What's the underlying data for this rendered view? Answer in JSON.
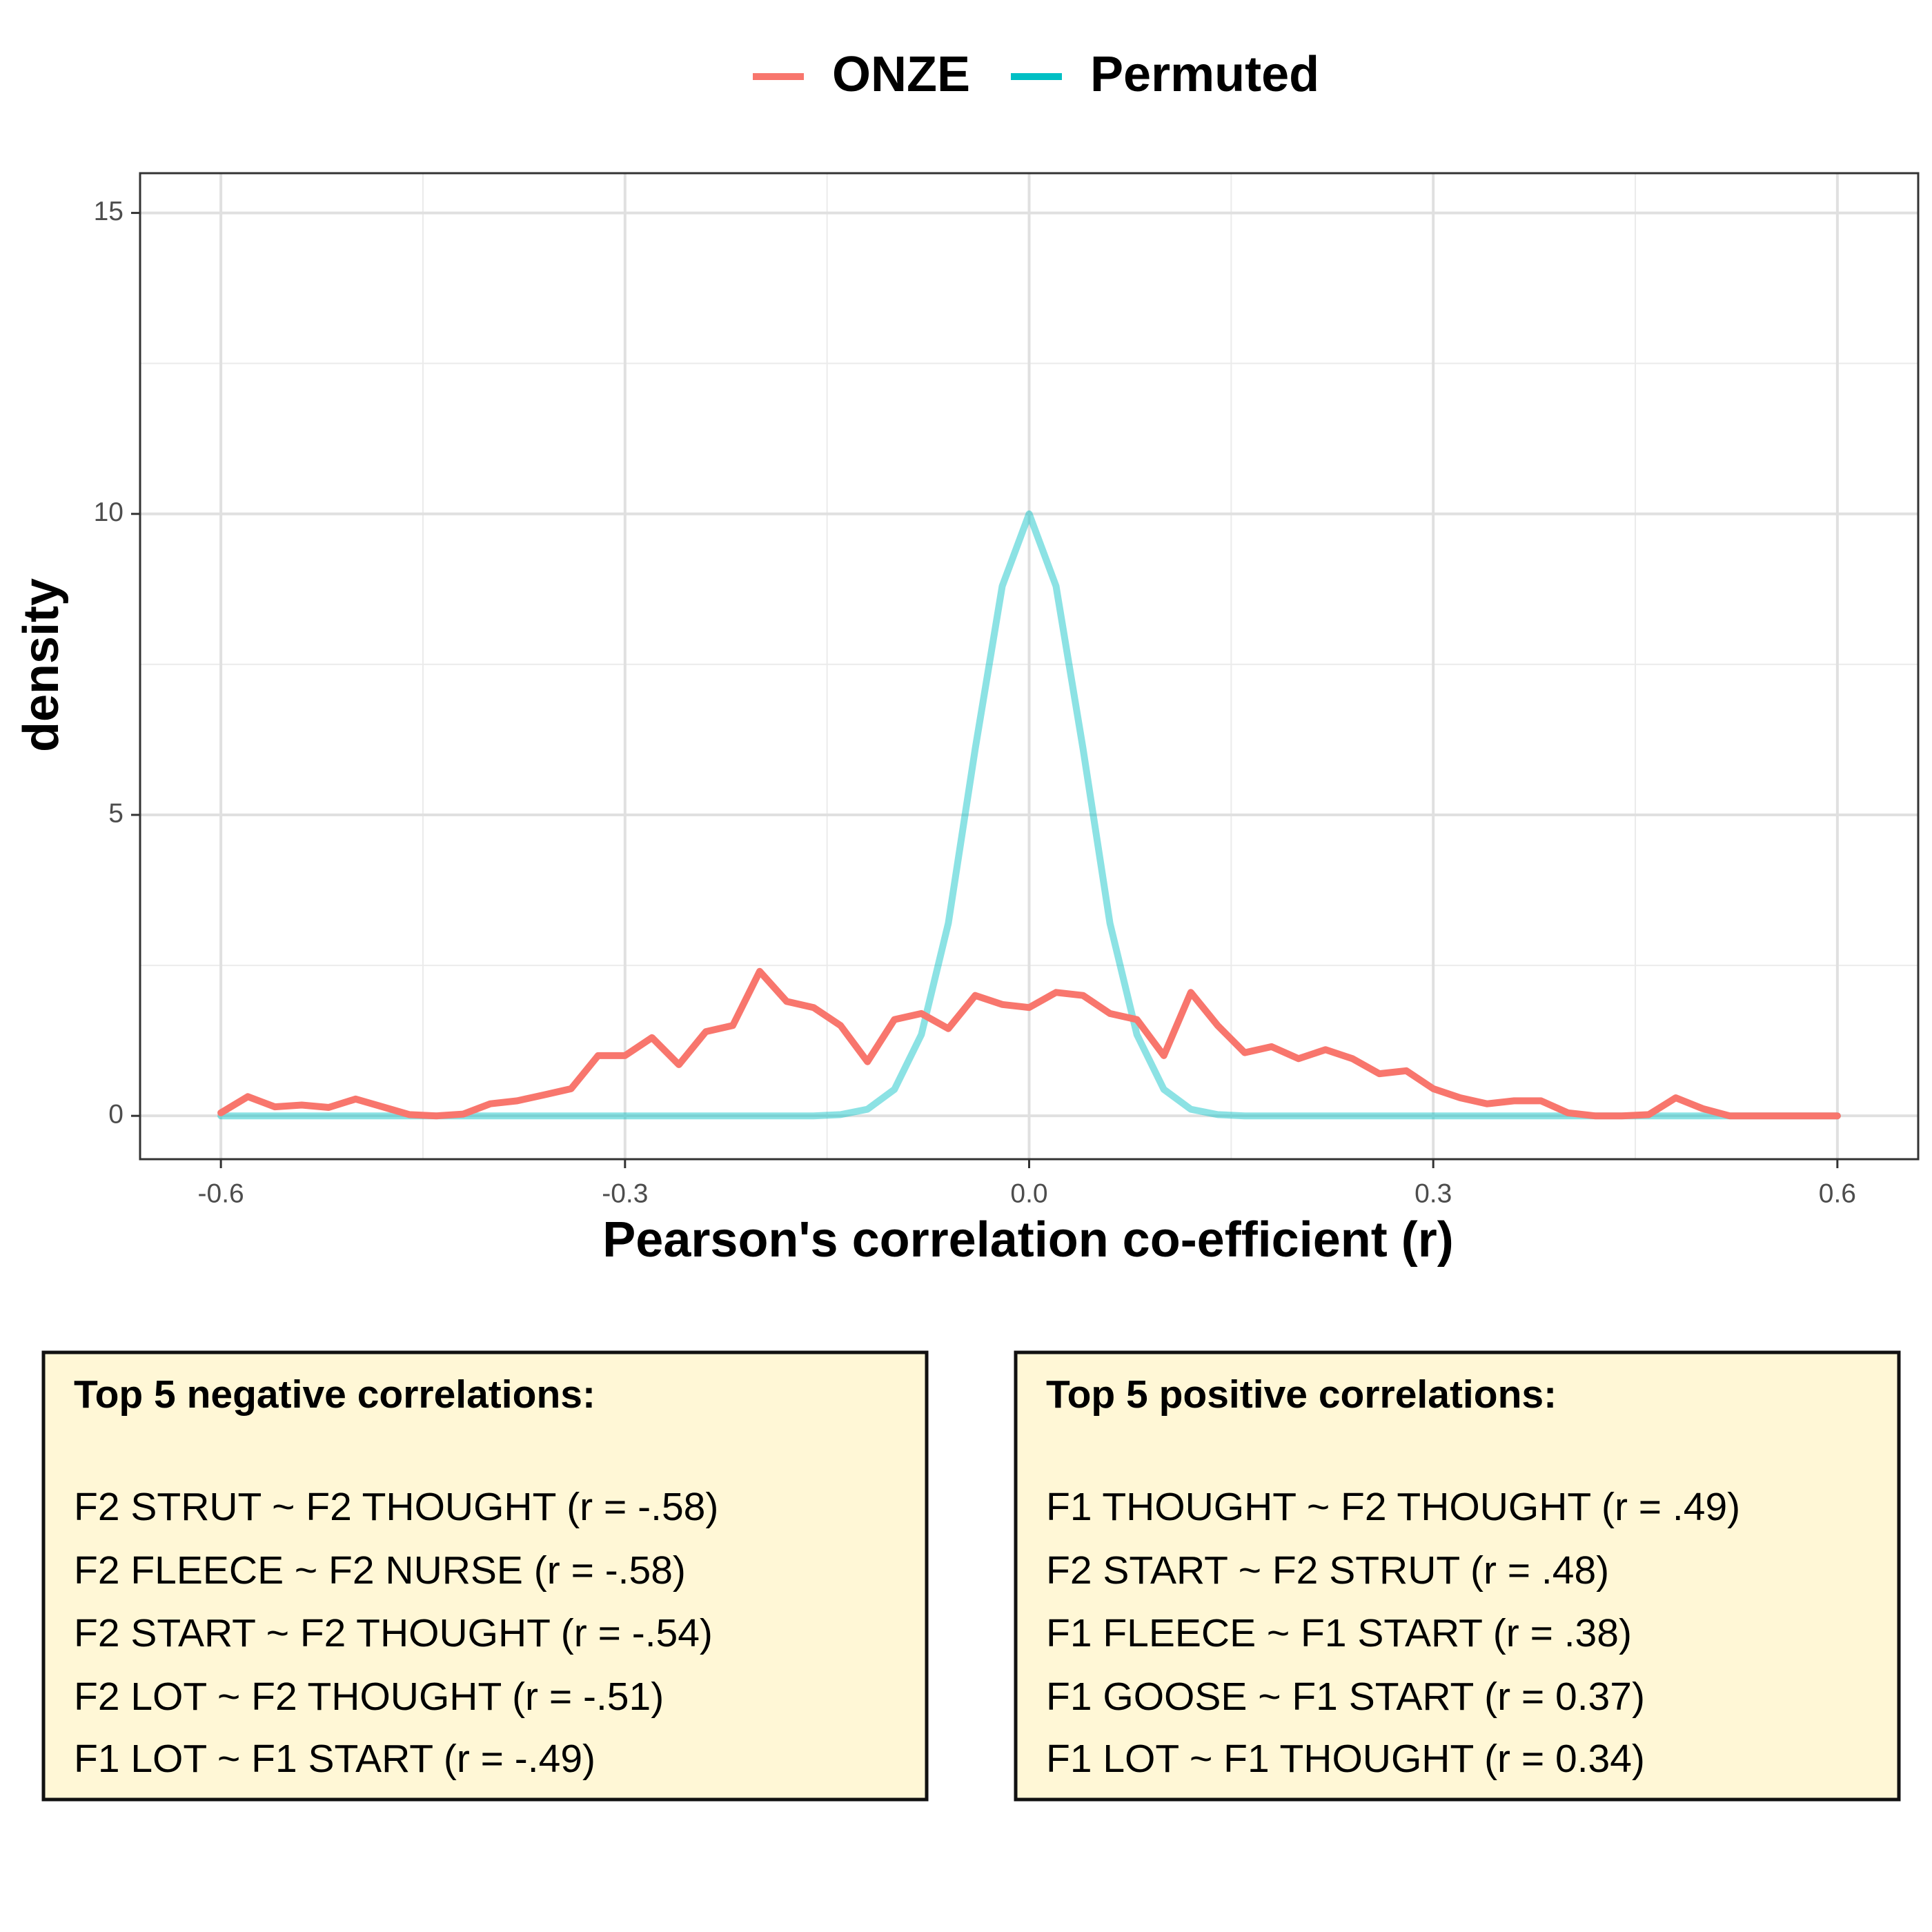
{
  "chart_data": {
    "type": "line",
    "legend_position": "top",
    "xlabel": "Pearson's correlation co-efficient (r)",
    "ylabel": "density",
    "x": [
      -0.6,
      -0.58,
      -0.56,
      -0.54,
      -0.52,
      -0.5,
      -0.48,
      -0.46,
      -0.44,
      -0.42,
      -0.4,
      -0.38,
      -0.36,
      -0.34,
      -0.32,
      -0.3,
      -0.28,
      -0.26,
      -0.24,
      -0.22,
      -0.2,
      -0.18,
      -0.16,
      -0.14,
      -0.12,
      -0.1,
      -0.08,
      -0.06,
      -0.04,
      -0.02,
      0,
      0.02,
      0.04,
      0.06,
      0.08,
      0.1,
      0.12,
      0.14,
      0.16,
      0.18,
      0.2,
      0.22,
      0.24,
      0.26,
      0.28,
      0.3,
      0.32,
      0.34,
      0.36,
      0.38,
      0.4,
      0.42,
      0.44,
      0.46,
      0.48,
      0.5,
      0.52,
      0.54,
      0.56,
      0.58,
      0.6
    ],
    "series": [
      {
        "name": "ONZE",
        "color": "#f8766d",
        "values": [
          0.05,
          0.32,
          0.15,
          0.18,
          0.14,
          0.28,
          0.15,
          0.02,
          0,
          0.03,
          0.2,
          0.25,
          0.35,
          0.45,
          1.0,
          1.0,
          1.3,
          0.85,
          1.4,
          1.5,
          2.4,
          1.9,
          1.8,
          1.5,
          0.9,
          1.6,
          1.7,
          1.45,
          2.0,
          1.85,
          1.8,
          2.05,
          2.0,
          1.7,
          1.6,
          1.0,
          2.05,
          1.5,
          1.05,
          1.15,
          0.95,
          1.1,
          0.95,
          0.7,
          0.75,
          0.45,
          0.3,
          0.2,
          0.25,
          0.25,
          0.05,
          0,
          0,
          0.02,
          0.3,
          0.12,
          0,
          0,
          0,
          0,
          0
        ]
      },
      {
        "name": "Permuted",
        "color": "#00bfc4",
        "values": [
          0,
          0,
          0,
          0,
          0,
          0,
          0,
          0,
          0,
          0,
          0,
          0,
          0,
          0,
          0,
          0,
          0,
          0,
          0,
          0,
          0,
          0,
          0,
          0.02,
          0.11,
          0.44,
          1.35,
          3.2,
          6.1,
          8.8,
          10,
          8.8,
          6.1,
          3.2,
          1.35,
          0.44,
          0.11,
          0.02,
          0,
          0,
          0,
          0,
          0,
          0,
          0,
          0,
          0,
          0,
          0,
          0,
          0,
          0,
          0,
          0,
          0,
          0,
          0,
          0,
          0,
          0,
          0
        ]
      }
    ],
    "xlim": [
      -0.66,
      0.66
    ],
    "ylim": [
      -0.72,
      15.66
    ],
    "xticks": [
      -0.6,
      -0.3,
      {
        "value": 0,
        "label": "0.0"
      },
      0.3,
      0.6
    ],
    "yticks": [
      0,
      5,
      10,
      15
    ],
    "xminor": [
      -0.45,
      -0.15,
      0.15,
      0.45
    ],
    "yminor": [
      2.5,
      7.5,
      12.5
    ],
    "grid": true
  },
  "notes": [
    {
      "title": "Top 5 negative correlations:",
      "lines": [
        "F2 STRUT ~ F2 THOUGHT (r = -.58)",
        "F2 FLEECE ~ F2 NURSE (r = -.58)",
        "F2 START ~ F2 THOUGHT (r = -.54)",
        "F2 LOT ~ F2 THOUGHT (r = -.51)",
        "F1 LOT ~ F1 START (r = -.49)"
      ]
    },
    {
      "title": "Top 5 positive correlations:",
      "lines": [
        "F1 THOUGHT ~ F2 THOUGHT (r = .49)",
        "F2 START ~ F2 STRUT (r = .48)",
        "F1 FLEECE ~ F1 START (r = .38)",
        "F1 GOOSE ~ F1 START (r = 0.37)",
        "F1 LOT ~ F1 THOUGHT (r = 0.34)"
      ]
    }
  ]
}
